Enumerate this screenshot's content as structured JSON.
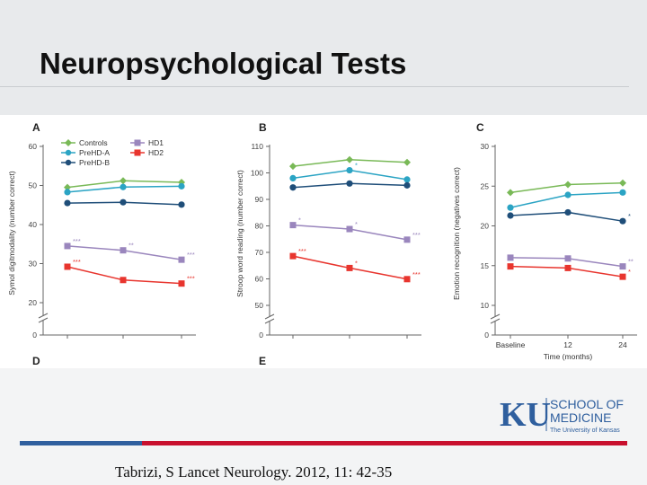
{
  "slide": {
    "title": "Neuropsychological Tests",
    "citation": "Tabrizi, S Lancet Neurology. 2012, 11: 42-35"
  },
  "logo": {
    "ku": "KU",
    "line1": "SCHOOL OF",
    "line2": "MEDICINE",
    "line3": "The University of Kansas",
    "blue": "#2f5f9e"
  },
  "colors": {
    "controls": "#79b957",
    "prehd_a": "#2ba4c4",
    "prehd_b": "#1f4e79",
    "hd1": "#9a86bd",
    "hd2": "#e8352e"
  },
  "chart_data": [
    {
      "type": "line",
      "panel": "A",
      "ylabel": "Symol digitmodality (number correct)",
      "yticks": [
        0,
        20,
        30,
        40,
        50,
        60
      ],
      "ylim": [
        0,
        60
      ],
      "legend": {
        "col1": [
          "Controls",
          "PreHD-A",
          "PreHD-B"
        ],
        "col2": [
          "HD1",
          "HD2"
        ]
      },
      "series": [
        {
          "name": "Controls",
          "values": [
            49.5,
            51.2,
            50.8
          ],
          "marker": "diamond",
          "color": "#79b957",
          "labels": [
            "",
            "",
            ""
          ]
        },
        {
          "name": "PreHD-A",
          "values": [
            48.3,
            49.6,
            49.8
          ],
          "marker": "circle",
          "color": "#2ba4c4",
          "labels": [
            "",
            "",
            ""
          ]
        },
        {
          "name": "PreHD-B",
          "values": [
            45.5,
            45.7,
            45.1
          ],
          "marker": "circle",
          "color": "#1f4e79",
          "labels": [
            "",
            "",
            ""
          ]
        },
        {
          "name": "HD1",
          "values": [
            34.5,
            33.4,
            31.0
          ],
          "marker": "square",
          "color": "#9a86bd",
          "labels": [
            "***",
            "**",
            "***"
          ]
        },
        {
          "name": "HD2",
          "values": [
            29.2,
            25.8,
            24.9
          ],
          "marker": "square",
          "color": "#e8352e",
          "labels": [
            "***",
            "",
            "***"
          ]
        }
      ]
    },
    {
      "type": "line",
      "panel": "B",
      "ylabel": "Stroop word reading (number correct)",
      "yticks": [
        0,
        50,
        60,
        70,
        80,
        90,
        100,
        110
      ],
      "ylim": [
        0,
        110
      ],
      "series": [
        {
          "name": "Controls",
          "values": [
            102.5,
            105.0,
            104.0
          ],
          "marker": "diamond",
          "color": "#79b957",
          "labels": [
            "",
            "",
            ""
          ]
        },
        {
          "name": "PreHD-A",
          "values": [
            98.0,
            101.0,
            97.5
          ],
          "marker": "circle",
          "color": "#2ba4c4",
          "labels": [
            "",
            "*",
            ""
          ]
        },
        {
          "name": "PreHD-B",
          "values": [
            94.5,
            96.0,
            95.3
          ],
          "marker": "circle",
          "color": "#1f4e79",
          "labels": [
            "",
            "",
            ""
          ]
        },
        {
          "name": "HD1",
          "values": [
            80.3,
            78.8,
            74.8
          ],
          "marker": "square",
          "color": "#9a86bd",
          "labels": [
            "*",
            "*",
            "***"
          ]
        },
        {
          "name": "HD2",
          "values": [
            68.6,
            64.1,
            59.9
          ],
          "marker": "square",
          "color": "#e8352e",
          "labels": [
            "***",
            "*",
            "***"
          ]
        }
      ]
    },
    {
      "type": "line",
      "panel": "C",
      "ylabel": "Emotion recognition (negatives correct)",
      "xlabel": "Time (months)",
      "categories": [
        "Baseline",
        "12",
        "24"
      ],
      "yticks": [
        0,
        10,
        15,
        20,
        25,
        30
      ],
      "ylim": [
        0,
        30
      ],
      "series": [
        {
          "name": "Controls",
          "values": [
            24.2,
            25.2,
            25.4
          ],
          "marker": "diamond",
          "color": "#79b957",
          "labels": [
            "",
            "",
            ""
          ]
        },
        {
          "name": "PreHD-A",
          "values": [
            22.3,
            23.9,
            24.2
          ],
          "marker": "circle",
          "color": "#2ba4c4",
          "labels": [
            "",
            "",
            ""
          ]
        },
        {
          "name": "PreHD-B",
          "values": [
            21.3,
            21.7,
            20.6
          ],
          "marker": "circle",
          "color": "#1f4e79",
          "labels": [
            "",
            "",
            "*"
          ]
        },
        {
          "name": "HD1",
          "values": [
            16.0,
            15.9,
            14.9
          ],
          "marker": "square",
          "color": "#9a86bd",
          "labels": [
            "",
            "",
            "**"
          ]
        },
        {
          "name": "HD2",
          "values": [
            14.9,
            14.7,
            13.6
          ],
          "marker": "square",
          "color": "#e8352e",
          "labels": [
            "",
            "",
            "*"
          ]
        }
      ]
    }
  ],
  "bottom_panels": [
    "D",
    "E"
  ]
}
